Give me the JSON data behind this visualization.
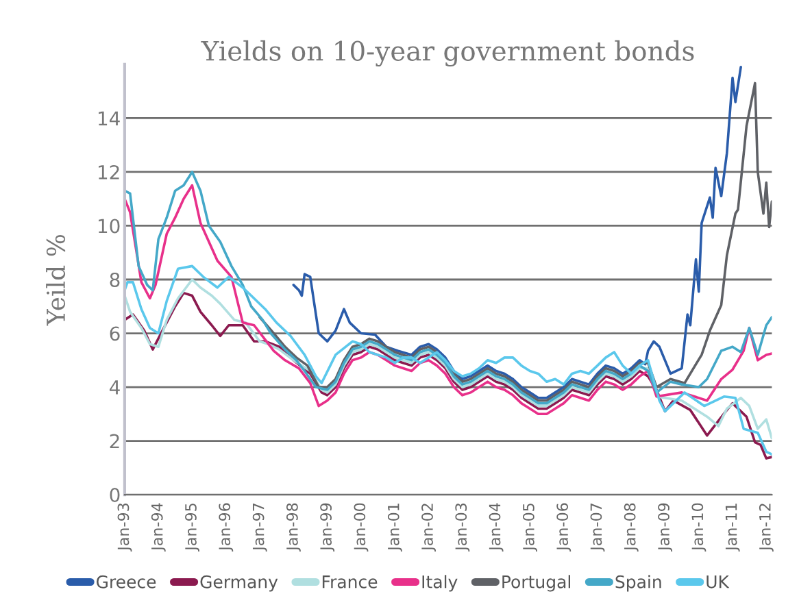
{
  "chart_data": {
    "type": "line",
    "title": "Yields on 10-year government bonds",
    "ylabel": "Yeild %",
    "xlim": [
      "1993-01",
      "2012-03"
    ],
    "ylim": [
      0,
      16
    ],
    "yticks": [
      0,
      2,
      4,
      6,
      8,
      10,
      12,
      14
    ],
    "xticks": [
      {
        "value": "1993-01",
        "label": "Jan-93"
      },
      {
        "value": "1994-01",
        "label": "Jan-94"
      },
      {
        "value": "1995-01",
        "label": "Jan-95"
      },
      {
        "value": "1996-01",
        "label": "Jan-96"
      },
      {
        "value": "1997-01",
        "label": "Jan-97"
      },
      {
        "value": "1998-01",
        "label": "Jan-98"
      },
      {
        "value": "1999-01",
        "label": "Jan-99"
      },
      {
        "value": "2000-01",
        "label": "Jan-00"
      },
      {
        "value": "2001-01",
        "label": "Jan-01"
      },
      {
        "value": "2002-01",
        "label": "Jan-02"
      },
      {
        "value": "2003-01",
        "label": "Jan-03"
      },
      {
        "value": "2004-01",
        "label": "Jan-04"
      },
      {
        "value": "2005-01",
        "label": "Jan-05"
      },
      {
        "value": "2006-01",
        "label": "Jan-06"
      },
      {
        "value": "2007-01",
        "label": "Jan-07"
      },
      {
        "value": "2008-01",
        "label": "Jan-08"
      },
      {
        "value": "2009-01",
        "label": "Jan-09"
      },
      {
        "value": "2010-01",
        "label": "Jan-10"
      },
      {
        "value": "2011-01",
        "label": "Jan-11"
      },
      {
        "value": "2012-01",
        "label": "Jan-12"
      }
    ],
    "grid": "y",
    "legend": "bottom",
    "marker": "none",
    "line_style": "solid",
    "series": [
      {
        "name": "Greece",
        "color": "#2a5caa",
        "x": [
          "1998-01",
          "1998-03",
          "1998-04",
          "1998-05",
          "1998-07",
          "1998-10",
          "1999-01",
          "1999-04",
          "1999-07",
          "1999-09",
          "2000-01",
          "2000-06",
          "2000-10",
          "2001-02",
          "2001-07",
          "2001-10",
          "2002-01",
          "2002-04",
          "2002-07",
          "2002-10",
          "2003-01",
          "2003-04",
          "2003-07",
          "2003-10",
          "2004-01",
          "2004-04",
          "2004-07",
          "2004-10",
          "2005-01",
          "2005-04",
          "2005-07",
          "2005-10",
          "2006-01",
          "2006-04",
          "2006-07",
          "2006-10",
          "2007-01",
          "2007-04",
          "2007-07",
          "2007-10",
          "2008-01",
          "2008-04",
          "2008-06",
          "2008-07",
          "2008-09",
          "2008-11",
          "2009-03",
          "2009-07",
          "2009-09",
          "2009-10",
          "2009-12",
          "2010-01",
          "2010-02",
          "2010-05",
          "2010-06",
          "2010-07",
          "2010-09",
          "2010-11",
          "2011-01",
          "2011-02",
          "2011-04"
        ],
        "values": [
          7.8,
          7.6,
          7.4,
          8.2,
          8.1,
          6.0,
          5.7,
          6.1,
          6.9,
          6.4,
          6.0,
          5.95,
          5.5,
          5.35,
          5.2,
          5.5,
          5.6,
          5.4,
          5.1,
          4.6,
          4.3,
          4.4,
          4.6,
          4.8,
          4.6,
          4.5,
          4.3,
          4.0,
          3.8,
          3.6,
          3.6,
          3.8,
          4.0,
          4.3,
          4.2,
          4.1,
          4.5,
          4.8,
          4.7,
          4.5,
          4.7,
          5.0,
          4.85,
          5.35,
          5.7,
          5.5,
          4.5,
          4.7,
          6.7,
          6.3,
          8.75,
          7.55,
          10.1,
          11.05,
          10.3,
          12.15,
          11.1,
          12.7,
          15.5,
          14.6,
          15.9
        ]
      },
      {
        "name": "Germany",
        "color": "#8b1a4f",
        "x": [
          "1993-01",
          "1993-04",
          "1993-08",
          "1993-11",
          "1994-03",
          "1994-07",
          "1994-10",
          "1995-01",
          "1995-04",
          "1995-08",
          "1995-11",
          "1996-02",
          "1996-07",
          "1996-11",
          "1997-03",
          "1997-08",
          "1998-01",
          "1998-07",
          "1998-11",
          "1999-01",
          "1999-04",
          "1999-07",
          "1999-10",
          "2000-01",
          "2000-04",
          "2000-07",
          "2000-10",
          "2001-01",
          "2001-04",
          "2001-07",
          "2001-10",
          "2002-01",
          "2002-04",
          "2002-07",
          "2002-10",
          "2003-01",
          "2003-04",
          "2003-07",
          "2003-10",
          "2004-01",
          "2004-04",
          "2004-07",
          "2004-10",
          "2005-01",
          "2005-04",
          "2005-07",
          "2005-10",
          "2006-01",
          "2006-04",
          "2006-07",
          "2006-10",
          "2007-01",
          "2007-04",
          "2007-07",
          "2007-10",
          "2008-01",
          "2008-04",
          "2008-07",
          "2008-10",
          "2009-01",
          "2009-04",
          "2009-10",
          "2010-04",
          "2010-11",
          "2011-01",
          "2011-06",
          "2011-09",
          "2011-11",
          "2012-01",
          "2012-03"
        ],
        "values": [
          6.5,
          6.7,
          6.1,
          5.4,
          6.2,
          7.0,
          7.5,
          7.4,
          6.8,
          6.3,
          5.9,
          6.3,
          6.3,
          5.7,
          5.7,
          5.5,
          5.0,
          4.5,
          3.8,
          3.7,
          4.0,
          4.7,
          5.2,
          5.3,
          5.5,
          5.4,
          5.2,
          5.0,
          4.9,
          4.8,
          5.1,
          5.2,
          5.0,
          4.7,
          4.2,
          3.9,
          4.0,
          4.2,
          4.4,
          4.2,
          4.1,
          3.9,
          3.6,
          3.4,
          3.2,
          3.2,
          3.4,
          3.6,
          3.9,
          3.8,
          3.7,
          4.1,
          4.4,
          4.3,
          4.1,
          4.3,
          4.6,
          4.4,
          3.9,
          3.1,
          3.5,
          3.15,
          2.2,
          3.15,
          3.4,
          2.9,
          1.95,
          1.85,
          1.35,
          1.4
        ]
      },
      {
        "name": "France",
        "color": "#b0dfe0",
        "x": [
          "1993-01",
          "1993-03",
          "1993-07",
          "1993-10",
          "1994-01",
          "1994-04",
          "1994-08",
          "1995-01",
          "1995-04",
          "1995-08",
          "1995-11",
          "1996-04",
          "1996-08",
          "1997-01",
          "1997-04",
          "1997-08",
          "1998-01",
          "1998-07",
          "1998-11",
          "1999-01",
          "1999-04",
          "1999-07",
          "1999-10",
          "2000-01",
          "2000-04",
          "2000-07",
          "2000-10",
          "2001-01",
          "2001-04",
          "2001-07",
          "2001-10",
          "2002-01",
          "2002-04",
          "2002-07",
          "2002-10",
          "2003-01",
          "2003-04",
          "2003-07",
          "2003-10",
          "2004-01",
          "2004-04",
          "2004-07",
          "2004-10",
          "2005-01",
          "2005-04",
          "2005-07",
          "2005-10",
          "2006-01",
          "2006-04",
          "2006-07",
          "2006-10",
          "2007-01",
          "2007-04",
          "2007-07",
          "2007-10",
          "2008-01",
          "2008-04",
          "2008-07",
          "2008-10",
          "2009-07",
          "2010-04",
          "2010-08",
          "2010-11",
          "2011-04",
          "2011-07",
          "2011-10",
          "2012-01",
          "2012-03"
        ],
        "values": [
          7.4,
          6.8,
          6.2,
          5.6,
          5.5,
          6.5,
          7.3,
          8.0,
          7.7,
          7.4,
          7.1,
          6.5,
          6.4,
          5.7,
          5.6,
          5.4,
          5.0,
          4.6,
          3.9,
          3.8,
          4.1,
          4.8,
          5.3,
          5.4,
          5.6,
          5.5,
          5.3,
          5.1,
          5.0,
          4.9,
          5.2,
          5.3,
          5.1,
          4.8,
          4.3,
          4.0,
          4.1,
          4.3,
          4.5,
          4.3,
          4.2,
          4.0,
          3.7,
          3.5,
          3.3,
          3.3,
          3.5,
          3.7,
          4.0,
          3.9,
          3.8,
          4.2,
          4.5,
          4.4,
          4.2,
          4.4,
          4.7,
          4.7,
          3.65,
          3.5,
          2.9,
          2.55,
          3.2,
          3.6,
          3.3,
          2.45,
          2.8,
          2.1
        ]
      },
      {
        "name": "Italy",
        "color": "#e8308a",
        "x": [
          "1993-01",
          "1993-03",
          "1993-07",
          "1993-10",
          "1993-12",
          "1994-04",
          "1994-07",
          "1994-10",
          "1995-01",
          "1995-04",
          "1995-10",
          "1996-03",
          "1996-07",
          "1996-11",
          "1997-06",
          "1997-10",
          "1998-03",
          "1998-07",
          "1998-10",
          "1999-01",
          "1999-04",
          "1999-07",
          "1999-10",
          "2000-01",
          "2000-04",
          "2000-07",
          "2000-10",
          "2001-01",
          "2001-04",
          "2001-07",
          "2001-10",
          "2002-01",
          "2002-04",
          "2002-07",
          "2002-10",
          "2003-01",
          "2003-04",
          "2003-07",
          "2003-10",
          "2004-01",
          "2004-04",
          "2004-07",
          "2004-10",
          "2005-01",
          "2005-04",
          "2005-07",
          "2005-10",
          "2006-01",
          "2006-04",
          "2006-07",
          "2006-10",
          "2007-01",
          "2007-04",
          "2007-07",
          "2007-10",
          "2008-01",
          "2008-04",
          "2008-07",
          "2008-10",
          "2009-07",
          "2010-04",
          "2010-09",
          "2011-01",
          "2011-05",
          "2011-07",
          "2011-10",
          "2012-01",
          "2012-03"
        ],
        "values": [
          11.0,
          10.5,
          7.9,
          7.3,
          7.8,
          9.7,
          10.3,
          11.0,
          11.5,
          10.1,
          8.7,
          8.1,
          6.4,
          6.3,
          5.35,
          5.0,
          4.7,
          4.15,
          3.3,
          3.5,
          3.8,
          4.5,
          5.0,
          5.1,
          5.3,
          5.2,
          5.0,
          4.8,
          4.7,
          4.6,
          4.9,
          5.0,
          4.8,
          4.5,
          4.0,
          3.7,
          3.8,
          4.0,
          4.2,
          4.0,
          3.9,
          3.7,
          3.4,
          3.2,
          3.0,
          3.0,
          3.2,
          3.4,
          3.7,
          3.6,
          3.5,
          3.9,
          4.2,
          4.1,
          3.9,
          4.1,
          4.4,
          4.6,
          3.65,
          3.8,
          3.5,
          4.3,
          4.65,
          5.35,
          6.2,
          5.0,
          5.2,
          5.25
        ]
      },
      {
        "name": "Portugal",
        "color": "#5f6166",
        "x": [
          "1997-01",
          "1997-06",
          "1997-10",
          "1998-02",
          "1998-06",
          "1998-10",
          "1999-01",
          "1999-04",
          "1999-07",
          "1999-10",
          "2000-01",
          "2000-04",
          "2000-07",
          "2000-10",
          "2001-01",
          "2001-04",
          "2001-07",
          "2001-10",
          "2002-01",
          "2002-04",
          "2002-07",
          "2002-10",
          "2003-01",
          "2003-04",
          "2003-07",
          "2003-10",
          "2004-01",
          "2004-04",
          "2004-07",
          "2004-10",
          "2005-01",
          "2005-04",
          "2005-07",
          "2005-10",
          "2006-01",
          "2006-04",
          "2006-07",
          "2006-10",
          "2007-01",
          "2007-04",
          "2007-07",
          "2007-10",
          "2008-01",
          "2008-04",
          "2008-07",
          "2008-10",
          "2009-03",
          "2009-08",
          "2009-12",
          "2010-02",
          "2010-05",
          "2010-09",
          "2010-11",
          "2011-02",
          "2011-03",
          "2011-06",
          "2011-09",
          "2011-10",
          "2011-12",
          "2012-01",
          "2012-02",
          "2012-03"
        ],
        "values": [
          6.6,
          6.0,
          5.5,
          5.1,
          4.8,
          4.0,
          4.0,
          4.3,
          5.0,
          5.5,
          5.6,
          5.8,
          5.7,
          5.5,
          5.3,
          5.2,
          5.1,
          5.4,
          5.5,
          5.3,
          5.0,
          4.5,
          4.2,
          4.3,
          4.5,
          4.7,
          4.5,
          4.4,
          4.2,
          3.9,
          3.7,
          3.5,
          3.5,
          3.7,
          3.9,
          4.2,
          4.1,
          4.0,
          4.4,
          4.7,
          4.6,
          4.4,
          4.6,
          4.9,
          4.9,
          4.0,
          4.3,
          4.15,
          4.85,
          5.2,
          6.1,
          7.05,
          8.9,
          10.45,
          10.6,
          13.7,
          15.3,
          12.0,
          10.45,
          11.6,
          9.95,
          10.9
        ]
      },
      {
        "name": "Spain",
        "color": "#44a8c8",
        "x": [
          "1993-01",
          "1993-03",
          "1993-06",
          "1993-09",
          "1993-11",
          "1994-01",
          "1994-04",
          "1994-07",
          "1994-10",
          "1995-01",
          "1995-04",
          "1995-07",
          "1995-11",
          "1996-03",
          "1996-07",
          "1996-10",
          "1997-02",
          "1997-05",
          "1997-10",
          "1998-02",
          "1998-05",
          "1998-09",
          "1999-01",
          "1999-04",
          "1999-07",
          "1999-10",
          "2000-01",
          "2000-04",
          "2000-07",
          "2000-10",
          "2001-01",
          "2001-04",
          "2001-07",
          "2001-10",
          "2002-01",
          "2002-04",
          "2002-07",
          "2002-10",
          "2003-01",
          "2003-04",
          "2003-07",
          "2003-10",
          "2004-01",
          "2004-04",
          "2004-07",
          "2004-10",
          "2005-01",
          "2005-04",
          "2005-07",
          "2005-10",
          "2006-01",
          "2006-04",
          "2006-07",
          "2006-10",
          "2007-01",
          "2007-04",
          "2007-07",
          "2007-10",
          "2008-01",
          "2008-04",
          "2008-07",
          "2008-10",
          "2009-03",
          "2009-07",
          "2010-01",
          "2010-04",
          "2010-09",
          "2011-01",
          "2011-04",
          "2011-07",
          "2011-10",
          "2012-01",
          "2012-03"
        ],
        "values": [
          11.3,
          11.2,
          8.5,
          7.8,
          7.6,
          9.5,
          10.3,
          11.3,
          11.5,
          12.0,
          11.3,
          10.0,
          9.4,
          8.5,
          7.8,
          7.0,
          6.5,
          6.0,
          5.4,
          5.0,
          4.6,
          4.0,
          3.9,
          4.2,
          4.9,
          5.4,
          5.5,
          5.7,
          5.6,
          5.4,
          5.2,
          5.1,
          5.0,
          5.3,
          5.4,
          5.2,
          4.9,
          4.4,
          4.1,
          4.2,
          4.4,
          4.6,
          4.4,
          4.3,
          4.1,
          3.8,
          3.6,
          3.4,
          3.4,
          3.6,
          3.8,
          4.1,
          4.0,
          3.9,
          4.3,
          4.6,
          4.5,
          4.3,
          4.5,
          4.8,
          4.6,
          3.8,
          4.2,
          4.1,
          4.0,
          4.3,
          5.35,
          5.5,
          5.3,
          6.2,
          5.2,
          6.3,
          6.6
        ]
      },
      {
        "name": "UK",
        "color": "#5bc8ec",
        "x": [
          "1993-01",
          "1993-02",
          "1993-04",
          "1993-07",
          "1993-10",
          "1994-01",
          "1994-04",
          "1994-08",
          "1995-01",
          "1995-05",
          "1995-10",
          "1996-02",
          "1996-07",
          "1996-10",
          "1997-03",
          "1997-07",
          "1997-12",
          "1998-05",
          "1998-09",
          "1998-11",
          "1999-04",
          "1999-10",
          "2000-01",
          "2000-04",
          "2000-07",
          "2000-10",
          "2001-01",
          "2001-04",
          "2001-07",
          "2001-10",
          "2002-01",
          "2002-04",
          "2002-07",
          "2002-10",
          "2003-01",
          "2003-04",
          "2003-07",
          "2003-10",
          "2004-01",
          "2004-04",
          "2004-07",
          "2004-10",
          "2005-01",
          "2005-04",
          "2005-07",
          "2005-10",
          "2006-01",
          "2006-04",
          "2006-07",
          "2006-10",
          "2007-01",
          "2007-04",
          "2007-07",
          "2007-10",
          "2008-01",
          "2008-04",
          "2008-07",
          "2008-11",
          "2009-01",
          "2009-08",
          "2010-03",
          "2010-10",
          "2011-02",
          "2011-05",
          "2011-10",
          "2012-01",
          "2012-03"
        ],
        "values": [
          7.6,
          7.9,
          7.9,
          6.9,
          6.2,
          6.0,
          7.2,
          8.4,
          8.5,
          8.1,
          7.7,
          8.1,
          7.7,
          7.4,
          6.9,
          6.4,
          5.9,
          5.2,
          4.4,
          4.15,
          5.2,
          5.7,
          5.6,
          5.3,
          5.2,
          5.1,
          4.9,
          5.1,
          5.1,
          4.9,
          5.1,
          5.3,
          5.0,
          4.6,
          4.4,
          4.5,
          4.7,
          5.0,
          4.9,
          5.1,
          5.1,
          4.8,
          4.6,
          4.5,
          4.2,
          4.3,
          4.1,
          4.5,
          4.6,
          4.5,
          4.8,
          5.1,
          5.3,
          4.8,
          4.5,
          4.8,
          5.0,
          3.5,
          3.1,
          3.8,
          3.3,
          3.65,
          3.6,
          2.45,
          2.3,
          1.6,
          1.5
        ]
      }
    ]
  }
}
